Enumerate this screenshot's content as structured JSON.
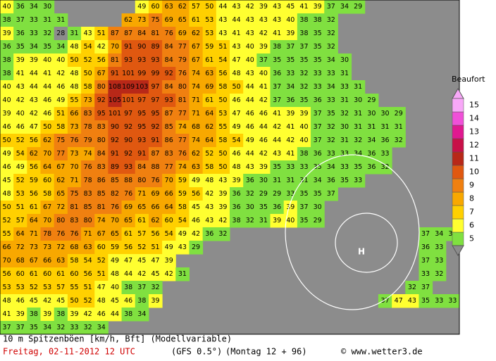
{
  "map": {
    "rows": [
      [
        40,
        36,
        34,
        30,
        null,
        null,
        null,
        null,
        null,
        null,
        49,
        60,
        63,
        62,
        57,
        50,
        44,
        43,
        42,
        39,
        43,
        45,
        41,
        39,
        37,
        34,
        29
      ],
      [
        38,
        37,
        33,
        31,
        31,
        null,
        null,
        null,
        null,
        62,
        73,
        75,
        69,
        65,
        61,
        53,
        43,
        44,
        43,
        43,
        43,
        40,
        38,
        38,
        32
      ],
      [
        39,
        36,
        33,
        32,
        28,
        31,
        43,
        51,
        87,
        87,
        84,
        81,
        76,
        69,
        62,
        53,
        43,
        41,
        43,
        42,
        41,
        39,
        38,
        35,
        32
      ],
      [
        36,
        35,
        34,
        35,
        34,
        48,
        54,
        42,
        70,
        91,
        90,
        89,
        84,
        77,
        67,
        59,
        51,
        43,
        40,
        39,
        38,
        37,
        37,
        35,
        32
      ],
      [
        38,
        39,
        39,
        40,
        40,
        50,
        52,
        56,
        81,
        93,
        93,
        93,
        84,
        79,
        67,
        61,
        54,
        47,
        40,
        37,
        35,
        35,
        35,
        35,
        34,
        30
      ],
      [
        38,
        41,
        44,
        41,
        42,
        48,
        50,
        67,
        91,
        101,
        99,
        99,
        92,
        76,
        74,
        63,
        56,
        48,
        43,
        40,
        36,
        33,
        32,
        33,
        33,
        31
      ],
      [
        40,
        43,
        44,
        44,
        46,
        48,
        58,
        80,
        108,
        109,
        103,
        97,
        84,
        80,
        74,
        69,
        58,
        50,
        44,
        41,
        37,
        34,
        32,
        33,
        34,
        33,
        31
      ],
      [
        40,
        42,
        43,
        46,
        49,
        55,
        73,
        92,
        105,
        101,
        97,
        97,
        93,
        81,
        71,
        61,
        50,
        46,
        44,
        42,
        37,
        36,
        35,
        36,
        33,
        31,
        30,
        29
      ],
      [
        39,
        40,
        42,
        46,
        51,
        66,
        83,
        95,
        101,
        97,
        95,
        95,
        87,
        77,
        71,
        64,
        53,
        47,
        46,
        46,
        41,
        39,
        39,
        37,
        35,
        32,
        31,
        30,
        30,
        29
      ],
      [
        46,
        46,
        47,
        50,
        58,
        73,
        78,
        83,
        90,
        92,
        95,
        92,
        85,
        74,
        68,
        62,
        55,
        49,
        46,
        44,
        42,
        41,
        40,
        37,
        32,
        30,
        31,
        31,
        31,
        31
      ],
      [
        50,
        52,
        56,
        62,
        75,
        76,
        79,
        80,
        92,
        90,
        93,
        91,
        86,
        77,
        74,
        64,
        58,
        54,
        49,
        46,
        44,
        42,
        40,
        37,
        32,
        31,
        32,
        34,
        36,
        32
      ],
      [
        49,
        54,
        62,
        70,
        77,
        73,
        74,
        84,
        91,
        92,
        91,
        87,
        83,
        76,
        62,
        52,
        50,
        46,
        44,
        42,
        43,
        41,
        38,
        36,
        33,
        33,
        34,
        36,
        33
      ],
      [
        46,
        49,
        56,
        64,
        67,
        70,
        76,
        83,
        89,
        93,
        84,
        88,
        77,
        74,
        63,
        58,
        50,
        48,
        43,
        39,
        35,
        33,
        33,
        35,
        34,
        33,
        35,
        36,
        32
      ],
      [
        45,
        52,
        59,
        60,
        62,
        71,
        78,
        86,
        85,
        88,
        80,
        76,
        70,
        59,
        49,
        48,
        43,
        39,
        36,
        30,
        31,
        31,
        31,
        34,
        36,
        35,
        33
      ],
      [
        48,
        53,
        56,
        58,
        65,
        75,
        83,
        85,
        82,
        76,
        71,
        69,
        66,
        59,
        56,
        42,
        39,
        36,
        32,
        29,
        29,
        33,
        35,
        35,
        37
      ],
      [
        50,
        51,
        61,
        67,
        72,
        81,
        85,
        81,
        76,
        69,
        65,
        66,
        64,
        58,
        45,
        43,
        39,
        36,
        30,
        35,
        36,
        39,
        37,
        30
      ],
      [
        52,
        57,
        64,
        70,
        80,
        83,
        80,
        74,
        70,
        65,
        61,
        62,
        60,
        54,
        46,
        43,
        42,
        38,
        32,
        31,
        39,
        40,
        35,
        29
      ],
      [
        55,
        64,
        71,
        78,
        76,
        76,
        71,
        67,
        65,
        61,
        57,
        56,
        54,
        49,
        42,
        36,
        32,
        null,
        null,
        null,
        null,
        null,
        null,
        null,
        null,
        null,
        null,
        null,
        null,
        null,
        null,
        37,
        34,
        32
      ],
      [
        66,
        72,
        73,
        73,
        72,
        68,
        63,
        60,
        59,
        56,
        52,
        51,
        49,
        43,
        29,
        null,
        null,
        null,
        null,
        null,
        null,
        null,
        null,
        null,
        null,
        null,
        null,
        null,
        null,
        null,
        null,
        36,
        33
      ],
      [
        70,
        68,
        67,
        66,
        63,
        58,
        54,
        52,
        49,
        47,
        45,
        47,
        39,
        null,
        null,
        null,
        null,
        null,
        null,
        null,
        null,
        null,
        null,
        null,
        null,
        null,
        null,
        null,
        null,
        null,
        null,
        37,
        33
      ],
      [
        56,
        60,
        61,
        60,
        61,
        60,
        56,
        51,
        48,
        44,
        42,
        45,
        42,
        31,
        null,
        null,
        null,
        null,
        null,
        null,
        null,
        null,
        null,
        null,
        null,
        null,
        null,
        null,
        null,
        null,
        null,
        33,
        32
      ],
      [
        53,
        53,
        52,
        53,
        57,
        55,
        51,
        47,
        40,
        38,
        37,
        32,
        null,
        null,
        null,
        null,
        null,
        null,
        null,
        null,
        null,
        null,
        null,
        null,
        null,
        null,
        null,
        null,
        null,
        null,
        32,
        37
      ],
      [
        48,
        46,
        45,
        42,
        45,
        50,
        52,
        48,
        45,
        46,
        38,
        39,
        null,
        null,
        null,
        null,
        null,
        null,
        null,
        null,
        null,
        null,
        null,
        null,
        null,
        null,
        null,
        null,
        37,
        47,
        43,
        35,
        33,
        33
      ],
      [
        41,
        39,
        38,
        39,
        38,
        39,
        42,
        46,
        44,
        38,
        34
      ],
      [
        37,
        37,
        35,
        34,
        32,
        33,
        32,
        34
      ]
    ],
    "pressure_label": "H"
  },
  "legend": {
    "title": "Beaufort",
    "levels": [
      5,
      6,
      7,
      8,
      9,
      10,
      11,
      12,
      13,
      14,
      15
    ],
    "colors": [
      "#80e040",
      "#ffff30",
      "#ffd000",
      "#f8a800",
      "#f08010",
      "#e05810",
      "#b82818",
      "#c81048",
      "#e01890",
      "#f050d8",
      "#f8a8f8"
    ],
    "below_color": "#8c8c8c"
  },
  "footer": {
    "line1": "10 m Spitzenböen [km/h, Bft] (Modellvariable)",
    "date": "Freitag, 02-11-2012  12 UTC",
    "model": "(GFS 0.5°)",
    "run": "(Montag 12 + 96)",
    "source": "© www.wetter3.de"
  }
}
